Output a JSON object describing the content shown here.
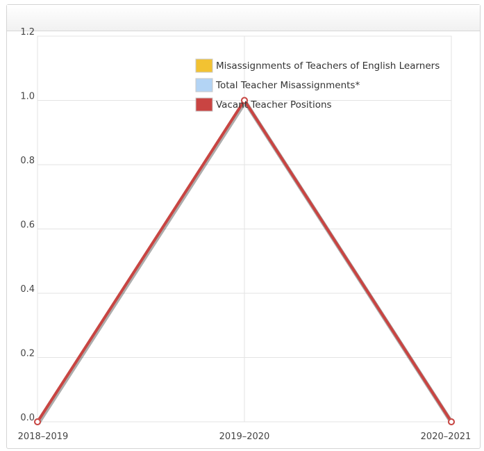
{
  "chart_data": {
    "type": "line",
    "categories": [
      "2018–2019",
      "2019–2020",
      "2020–2021"
    ],
    "ylim": [
      0,
      1.2
    ],
    "yticks": [
      "0.0",
      "0.2",
      "0.4",
      "0.6",
      "0.8",
      "1.0",
      "1.2"
    ],
    "grid": true,
    "legend_position": "top-center",
    "series": [
      {
        "name": "Misassignments of Teachers of English Learners",
        "color": "#f2c232",
        "values": [
          0,
          1,
          0
        ]
      },
      {
        "name": "Total Teacher Misassignments*",
        "color": "#b3d4f5",
        "values": [
          0,
          1,
          0
        ]
      },
      {
        "name": "Vacant Teacher Positions",
        "color": "#c94442",
        "values": [
          0,
          1,
          0
        ]
      }
    ]
  }
}
